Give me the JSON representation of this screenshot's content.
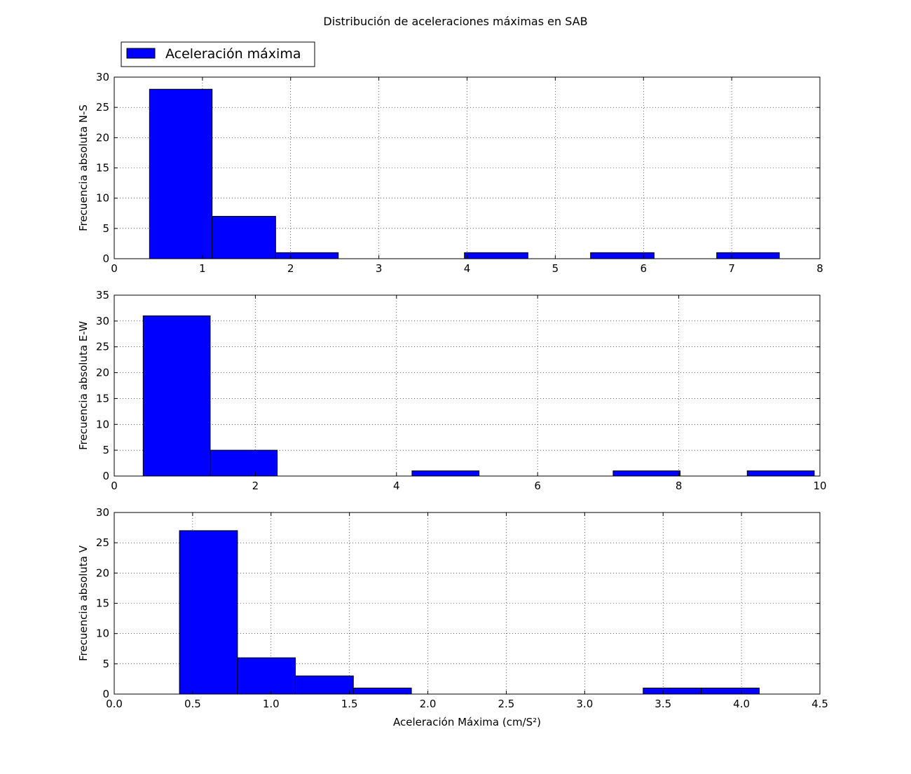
{
  "chart_data": {
    "type": "bar",
    "title": "Distribución de aceleraciones máximas en SAB",
    "legend": {
      "label": "Aceleración máxima",
      "placement": "top-left",
      "color": "#0000ff"
    },
    "grid": true,
    "bar_color": "#0000ff",
    "subplots": [
      {
        "ylabel": "Frecuencia absoluta N-S",
        "xlabel": "",
        "xlim": [
          0,
          8
        ],
        "ylim": [
          0,
          30
        ],
        "xticks": [
          "0",
          "1",
          "2",
          "3",
          "4",
          "5",
          "6",
          "7",
          "8"
        ],
        "xtick_values": [
          0,
          1,
          2,
          3,
          4,
          5,
          6,
          7,
          8
        ],
        "yticks": [
          "0",
          "5",
          "10",
          "15",
          "20",
          "25",
          "30"
        ],
        "ytick_values": [
          0,
          5,
          10,
          15,
          20,
          25,
          30
        ],
        "bin_edges": [
          0.4,
          1.11,
          1.83,
          2.54,
          3.26,
          3.97,
          4.69,
          5.4,
          6.12,
          6.83,
          7.54
        ],
        "counts": [
          28,
          7,
          1,
          0,
          0,
          1,
          0,
          1,
          0,
          1
        ]
      },
      {
        "ylabel": "Frecuencia absoluta E-W",
        "xlabel": "",
        "xlim": [
          0,
          10
        ],
        "ylim": [
          0,
          35
        ],
        "xticks": [
          "0",
          "2",
          "4",
          "6",
          "8",
          "10"
        ],
        "xtick_values": [
          0,
          2,
          4,
          6,
          8,
          10
        ],
        "yticks": [
          "0",
          "5",
          "10",
          "15",
          "20",
          "25",
          "30",
          "35"
        ],
        "ytick_values": [
          0,
          5,
          10,
          15,
          20,
          25,
          30,
          35
        ],
        "bin_edges": [
          0.41,
          1.36,
          2.31,
          3.27,
          4.22,
          5.17,
          6.12,
          7.07,
          8.02,
          8.97,
          9.92
        ],
        "counts": [
          31,
          5,
          0,
          0,
          1,
          0,
          0,
          1,
          0,
          1
        ]
      },
      {
        "ylabel": "Frecuencia absoluta V",
        "xlabel": "Aceleración Máxima (cm/S²)",
        "xlim": [
          0,
          4.5
        ],
        "ylim": [
          0,
          30
        ],
        "xticks": [
          "0.0",
          "0.5",
          "1.0",
          "1.5",
          "2.0",
          "2.5",
          "3.0",
          "3.5",
          "4.0",
          "4.5"
        ],
        "xtick_values": [
          0,
          0.5,
          1,
          1.5,
          2,
          2.5,
          3,
          3.5,
          4,
          4.5
        ],
        "yticks": [
          "0",
          "5",
          "10",
          "15",
          "20",
          "25",
          "30"
        ],
        "ytick_values": [
          0,
          5,
          10,
          15,
          20,
          25,
          30
        ],
        "bin_edges": [
          0.416,
          0.786,
          1.155,
          1.525,
          1.895,
          2.264,
          2.634,
          3.004,
          3.373,
          3.743,
          4.113
        ],
        "counts": [
          27,
          6,
          3,
          1,
          0,
          0,
          0,
          0,
          1,
          1
        ]
      }
    ]
  }
}
